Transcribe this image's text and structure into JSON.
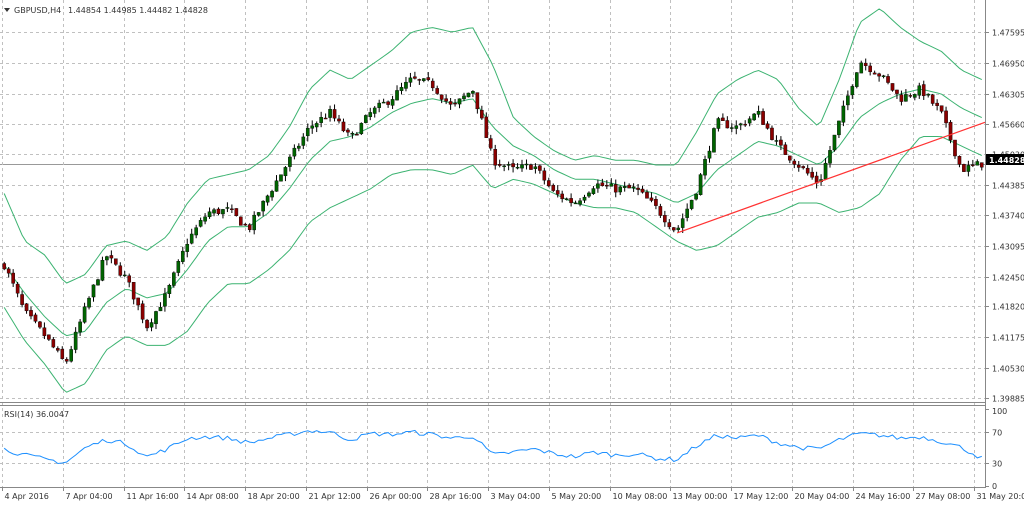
{
  "window": {
    "title": "GBPUSD,H4",
    "ohlc": "1.44854 1.44985 1.44482 1.44828"
  },
  "indicator": {
    "label": "RSI(14) 36.0047"
  },
  "colors": {
    "bull": "#006400",
    "bear": "#8b0000",
    "band": "#3cb371",
    "rsi": "#1e90ff",
    "trend": "#ff3333",
    "grid": "#c0c0c0",
    "price_box": "#000000",
    "price_text": "#ffffff"
  },
  "chart_data": {
    "type": "candlestick",
    "symbol": "GBPUSD",
    "timeframe": "H4",
    "current_price": "1.44828",
    "price_ticks": [
      "1.47595",
      "1.46950",
      "1.46305",
      "1.45660",
      "1.45030",
      "1.44385",
      "1.43740",
      "1.43095",
      "1.42450",
      "1.41820",
      "1.41175",
      "1.40530",
      "1.39885"
    ],
    "price_range": [
      1.3985,
      1.4815
    ],
    "time_ticks": [
      "4 Apr 2016",
      "7 Apr 04:00",
      "11 Apr 16:00",
      "14 Apr 08:00",
      "18 Apr 20:00",
      "21 Apr 12:00",
      "26 Apr 00:00",
      "28 Apr 16:00",
      "3 May 04:00",
      "5 May 20:00",
      "10 May 08:00",
      "13 May 00:00",
      "17 May 12:00",
      "20 May 04:00",
      "24 May 16:00",
      "27 May 08:00",
      "31 May 20:00"
    ],
    "price_anchors": [
      1.427,
      1.417,
      1.412,
      1.406,
      1.418,
      1.429,
      1.424,
      1.414,
      1.421,
      1.432,
      1.438,
      1.4385,
      1.4345,
      1.442,
      1.449,
      1.456,
      1.459,
      1.4535,
      1.459,
      1.462,
      1.466,
      1.465,
      1.46,
      1.464,
      1.449,
      1.447,
      1.448,
      1.442,
      1.44,
      1.444,
      1.443,
      1.443,
      1.439,
      1.434,
      1.443,
      1.457,
      1.456,
      1.459,
      1.452,
      1.448,
      1.444,
      1.457,
      1.47,
      1.467,
      1.462,
      1.464,
      1.459,
      1.447,
      1.4483
    ],
    "bollinger": {
      "period": 20,
      "upper": [
        1.442,
        1.432,
        1.429,
        1.423,
        1.425,
        1.431,
        1.432,
        1.43,
        1.433,
        1.44,
        1.445,
        1.446,
        1.447,
        1.45,
        1.456,
        1.464,
        1.468,
        1.466,
        1.469,
        1.472,
        1.476,
        1.477,
        1.476,
        1.477,
        1.469,
        1.458,
        1.454,
        1.451,
        1.449,
        1.45,
        1.449,
        1.449,
        1.448,
        1.448,
        1.455,
        1.463,
        1.466,
        1.468,
        1.466,
        1.46,
        1.456,
        1.466,
        1.478,
        1.481,
        1.477,
        1.474,
        1.472,
        1.468,
        1.466
      ],
      "middle": [
        1.427,
        1.421,
        1.416,
        1.412,
        1.413,
        1.419,
        1.422,
        1.42,
        1.421,
        1.426,
        1.432,
        1.435,
        1.435,
        1.438,
        1.443,
        1.449,
        1.453,
        1.454,
        1.456,
        1.459,
        1.461,
        1.462,
        1.461,
        1.462,
        1.456,
        1.452,
        1.45,
        1.447,
        1.445,
        1.445,
        1.444,
        1.443,
        1.442,
        1.44,
        1.442,
        1.447,
        1.45,
        1.453,
        1.452,
        1.45,
        1.448,
        1.452,
        1.458,
        1.461,
        1.463,
        1.464,
        1.463,
        1.46,
        1.458
      ],
      "lower": [
        1.418,
        1.411,
        1.406,
        1.4,
        1.402,
        1.409,
        1.412,
        1.41,
        1.41,
        1.413,
        1.419,
        1.423,
        1.423,
        1.426,
        1.43,
        1.436,
        1.439,
        1.441,
        1.443,
        1.446,
        1.447,
        1.447,
        1.446,
        1.448,
        1.443,
        1.445,
        1.444,
        1.442,
        1.44,
        1.439,
        1.439,
        1.438,
        1.435,
        1.432,
        1.43,
        1.431,
        1.434,
        1.437,
        1.438,
        1.44,
        1.44,
        1.438,
        1.439,
        1.442,
        1.449,
        1.454,
        1.454,
        1.452,
        1.45
      ]
    },
    "trendline": {
      "from_index": 33,
      "from_price": 1.4337,
      "to_index": 48.5,
      "to_price": 1.457
    },
    "rsi": {
      "period": 14,
      "value": "36.0047",
      "ticks": [
        "100",
        "70",
        "30",
        "0"
      ],
      "levels": [
        70,
        30
      ],
      "anchors": [
        48,
        40,
        35,
        30,
        50,
        60,
        55,
        38,
        48,
        62,
        64,
        62,
        56,
        62,
        67,
        72,
        70,
        60,
        68,
        67,
        70,
        67,
        62,
        65,
        40,
        44,
        48,
        42,
        38,
        44,
        40,
        42,
        36,
        34,
        52,
        66,
        62,
        66,
        56,
        50,
        48,
        60,
        68,
        66,
        62,
        64,
        58,
        50,
        36
      ]
    }
  }
}
